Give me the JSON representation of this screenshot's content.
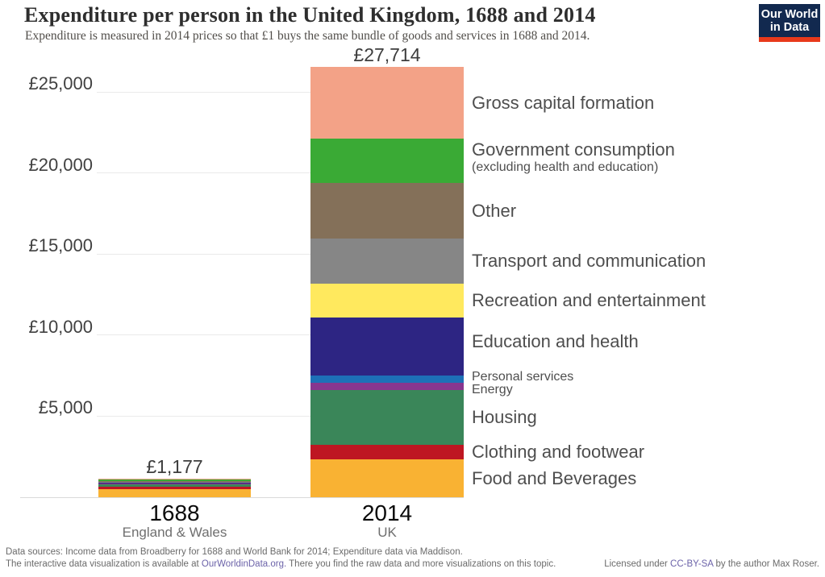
{
  "brand": {
    "logo_line1": "Our World",
    "logo_line2": "in Data",
    "logo_bg": "#12294F",
    "logo_accent": "#E8391B"
  },
  "chart_data": {
    "type": "bar",
    "stacked": true,
    "title": "Expenditure per person in the United Kingdom, 1688 and 2014",
    "subtitle": "Expenditure is measured in 2014 prices so that £1 buys the same bundle of goods and services in 1688 and 2014.",
    "currency": "£",
    "grid": true,
    "legend_position": "right-of-bars",
    "ylim": [
      0,
      27714
    ],
    "yticks": [
      {
        "value": 5000,
        "label": "£5,000"
      },
      {
        "value": 10000,
        "label": "£10,000"
      },
      {
        "value": 15000,
        "label": "£15,000"
      },
      {
        "value": 20000,
        "label": "£20,000"
      },
      {
        "value": 25000,
        "label": "£25,000"
      }
    ],
    "bars": [
      {
        "year": "1688",
        "region": "England & Wales",
        "total": 1177,
        "total_label": "£1,177"
      },
      {
        "year": "2014",
        "region": "UK",
        "total": 27714,
        "total_label": "£27,714"
      }
    ],
    "series": [
      {
        "name": "Food and Beverages",
        "color": "#F9B233",
        "values": [
          542,
          2420
        ]
      },
      {
        "name": "Clothing and footwear",
        "color": "#BE1622",
        "values": [
          130,
          934
        ]
      },
      {
        "name": "Housing",
        "color": "#3A8659",
        "values": [
          160,
          3530
        ]
      },
      {
        "name": "Energy",
        "color": "#87368F",
        "values": [
          35,
          470
        ],
        "label_size": "small",
        "label_dy": 4
      },
      {
        "name": "Personal services",
        "color": "#1D70B7",
        "values": [
          60,
          470
        ],
        "label_size": "small",
        "label_dy": -3
      },
      {
        "name": "Education and health",
        "color": "#2D2583",
        "values": [
          25,
          3740
        ],
        "label_dy": -6
      },
      {
        "name": "Recreation and entertainment",
        "color": "#FFE95E",
        "values": [
          10,
          2180
        ]
      },
      {
        "name": "Transport and communication",
        "color": "#868686",
        "values": [
          30,
          2910
        ]
      },
      {
        "name": "Other",
        "color": "#847059",
        "values": [
          40,
          3580
        ]
      },
      {
        "name": "Government consumption",
        "color": "#3AAA35",
        "values": [
          85,
          2860
        ],
        "sublabel": "(excluding health and education)",
        "label_dy": -7
      },
      {
        "name": "Gross capital formation",
        "color": "#F3A287",
        "values": [
          60,
          4620
        ]
      }
    ]
  },
  "footer": {
    "line1": "Data sources: Income data from Broadberry for 1688 and World Bank for 2014; Expenditure data via Maddison.",
    "line2_prefix": "The interactive data visualization is available at ",
    "line2_link": "OurWorldinData.org.",
    "line2_suffix": " There you find the raw data and more visualizations on this topic.",
    "license_prefix": "Licensed under ",
    "license_link": "CC-BY-SA",
    "license_suffix": " by the author Max Roser."
  }
}
